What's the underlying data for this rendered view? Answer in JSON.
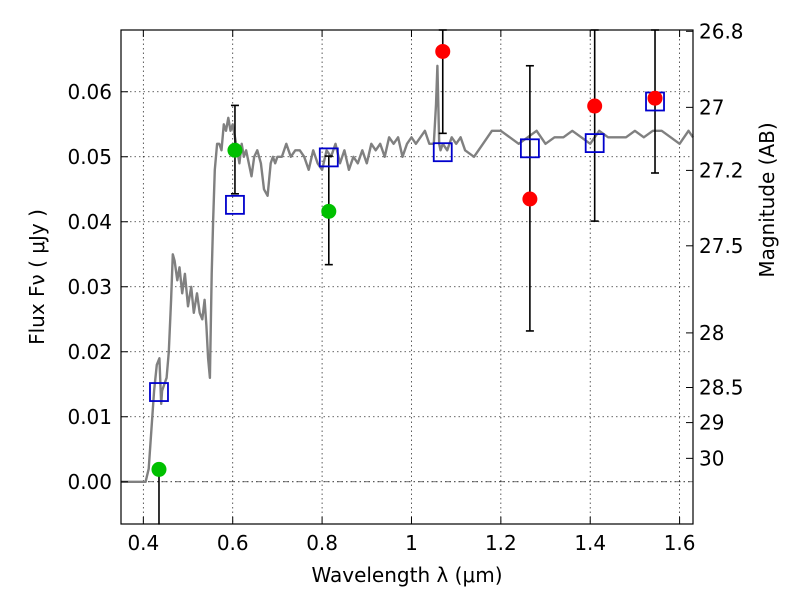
{
  "chart_data": {
    "type": "scatter",
    "xlabel": "Wavelength  λ (μm)",
    "ylabel_left": "Flux  Fν ( μJy )",
    "ylabel_right": "Magnitude (AB)",
    "xlim": [
      0.35,
      1.63
    ],
    "ylim": [
      -0.0065,
      0.0695
    ],
    "xticks": [
      0.4,
      0.6,
      0.8,
      1.0,
      1.2,
      1.4,
      1.6
    ],
    "xtick_labels": [
      "0.4",
      "0.6",
      "0.8",
      "1",
      "1.2",
      "1.4",
      "1.6"
    ],
    "yticks": [
      0.0,
      0.01,
      0.02,
      0.03,
      0.04,
      0.05,
      0.06
    ],
    "ytick_labels": [
      "0.00",
      "0.01",
      "0.02",
      "0.03",
      "0.04",
      "0.05",
      "0.06"
    ],
    "right_ticks": [
      {
        "label": "26.8",
        "flux": 0.0693
      },
      {
        "label": "27",
        "flux": 0.0576
      },
      {
        "label": "27.2",
        "flux": 0.0479
      },
      {
        "label": "27.5",
        "flux": 0.0363
      },
      {
        "label": "28",
        "flux": 0.0229
      },
      {
        "label": "28.5",
        "flux": 0.0145
      },
      {
        "label": "29",
        "flux": 0.0091
      },
      {
        "label": "30",
        "flux": 0.0036
      }
    ],
    "grid": true,
    "colors": {
      "spectrum": "#808080",
      "model_box": "#0000cc",
      "green_point": "#00c000",
      "red_point": "#ff0000",
      "errorbar": "#000000",
      "zero_line": "#000000"
    },
    "spectrum": {
      "x": [
        0.35,
        0.405,
        0.412,
        0.418,
        0.424,
        0.43,
        0.436,
        0.44,
        0.442,
        0.447,
        0.452,
        0.457,
        0.462,
        0.466,
        0.47,
        0.476,
        0.481,
        0.487,
        0.493,
        0.5,
        0.507,
        0.513,
        0.52,
        0.526,
        0.532,
        0.537,
        0.541,
        0.545,
        0.549,
        0.551,
        0.553,
        0.556,
        0.56,
        0.565,
        0.57,
        0.575,
        0.58,
        0.585,
        0.59,
        0.595,
        0.6,
        0.605,
        0.61,
        0.615,
        0.62,
        0.625,
        0.63,
        0.636,
        0.642,
        0.648,
        0.655,
        0.663,
        0.67,
        0.678,
        0.685,
        0.69,
        0.695,
        0.7,
        0.71,
        0.72,
        0.73,
        0.74,
        0.75,
        0.76,
        0.77,
        0.78,
        0.79,
        0.8,
        0.81,
        0.82,
        0.83,
        0.84,
        0.85,
        0.86,
        0.87,
        0.88,
        0.89,
        0.9,
        0.91,
        0.92,
        0.93,
        0.94,
        0.95,
        0.96,
        0.97,
        0.98,
        0.99,
        1.0,
        1.01,
        1.02,
        1.03,
        1.04,
        1.05,
        1.055,
        1.058,
        1.06,
        1.062,
        1.065,
        1.07,
        1.08,
        1.09,
        1.1,
        1.11,
        1.12,
        1.14,
        1.16,
        1.18,
        1.2,
        1.22,
        1.24,
        1.26,
        1.28,
        1.3,
        1.32,
        1.34,
        1.36,
        1.38,
        1.4,
        1.42,
        1.44,
        1.46,
        1.48,
        1.5,
        1.52,
        1.54,
        1.56,
        1.58,
        1.6,
        1.62,
        1.63
      ],
      "y": [
        0.0,
        0.0,
        0.002,
        0.008,
        0.014,
        0.018,
        0.019,
        0.012,
        0.014,
        0.015,
        0.016,
        0.02,
        0.028,
        0.035,
        0.034,
        0.031,
        0.033,
        0.029,
        0.032,
        0.027,
        0.03,
        0.026,
        0.029,
        0.026,
        0.025,
        0.028,
        0.024,
        0.019,
        0.016,
        0.024,
        0.032,
        0.04,
        0.048,
        0.052,
        0.052,
        0.051,
        0.055,
        0.054,
        0.056,
        0.054,
        0.055,
        0.053,
        0.051,
        0.049,
        0.052,
        0.05,
        0.051,
        0.049,
        0.047,
        0.05,
        0.051,
        0.049,
        0.045,
        0.044,
        0.049,
        0.05,
        0.049,
        0.05,
        0.05,
        0.052,
        0.05,
        0.051,
        0.051,
        0.05,
        0.048,
        0.051,
        0.049,
        0.048,
        0.051,
        0.05,
        0.052,
        0.049,
        0.051,
        0.048,
        0.05,
        0.049,
        0.051,
        0.049,
        0.052,
        0.051,
        0.052,
        0.05,
        0.053,
        0.052,
        0.053,
        0.05,
        0.052,
        0.053,
        0.052,
        0.053,
        0.054,
        0.052,
        0.052,
        0.058,
        0.064,
        0.058,
        0.052,
        0.051,
        0.052,
        0.051,
        0.053,
        0.052,
        0.053,
        0.051,
        0.05,
        0.052,
        0.054,
        0.054,
        0.053,
        0.052,
        0.053,
        0.054,
        0.052,
        0.053,
        0.053,
        0.054,
        0.053,
        0.052,
        0.054,
        0.053,
        0.053,
        0.053,
        0.054,
        0.053,
        0.054,
        0.054,
        0.053,
        0.052,
        0.054,
        0.053
      ]
    },
    "model_boxes": {
      "x": [
        0.435,
        0.605,
        0.815,
        1.07,
        1.265,
        1.41,
        1.545
      ],
      "y": [
        0.0138,
        0.0426,
        0.0499,
        0.0507,
        0.0513,
        0.0521,
        0.0585
      ]
    },
    "observations": [
      {
        "x": 0.435,
        "y": 0.0019,
        "yerr_low": 0.0085,
        "yerr_high": 0.0,
        "color": "green"
      },
      {
        "x": 0.605,
        "y": 0.051,
        "yerr_low": 0.0067,
        "yerr_high": 0.0069,
        "color": "green"
      },
      {
        "x": 0.815,
        "y": 0.0416,
        "yerr_low": 0.0082,
        "yerr_high": 0.0085,
        "color": "green"
      },
      {
        "x": 1.07,
        "y": 0.0662,
        "yerr_low": 0.0126,
        "yerr_high": 0.0033,
        "color": "red"
      },
      {
        "x": 1.265,
        "y": 0.0435,
        "yerr_low": 0.0203,
        "yerr_high": 0.0205,
        "color": "red"
      },
      {
        "x": 1.41,
        "y": 0.0578,
        "yerr_low": 0.0177,
        "yerr_high": 0.0117,
        "color": "red"
      },
      {
        "x": 1.545,
        "y": 0.059,
        "yerr_low": 0.0115,
        "yerr_high": 0.0105,
        "color": "red"
      }
    ]
  }
}
